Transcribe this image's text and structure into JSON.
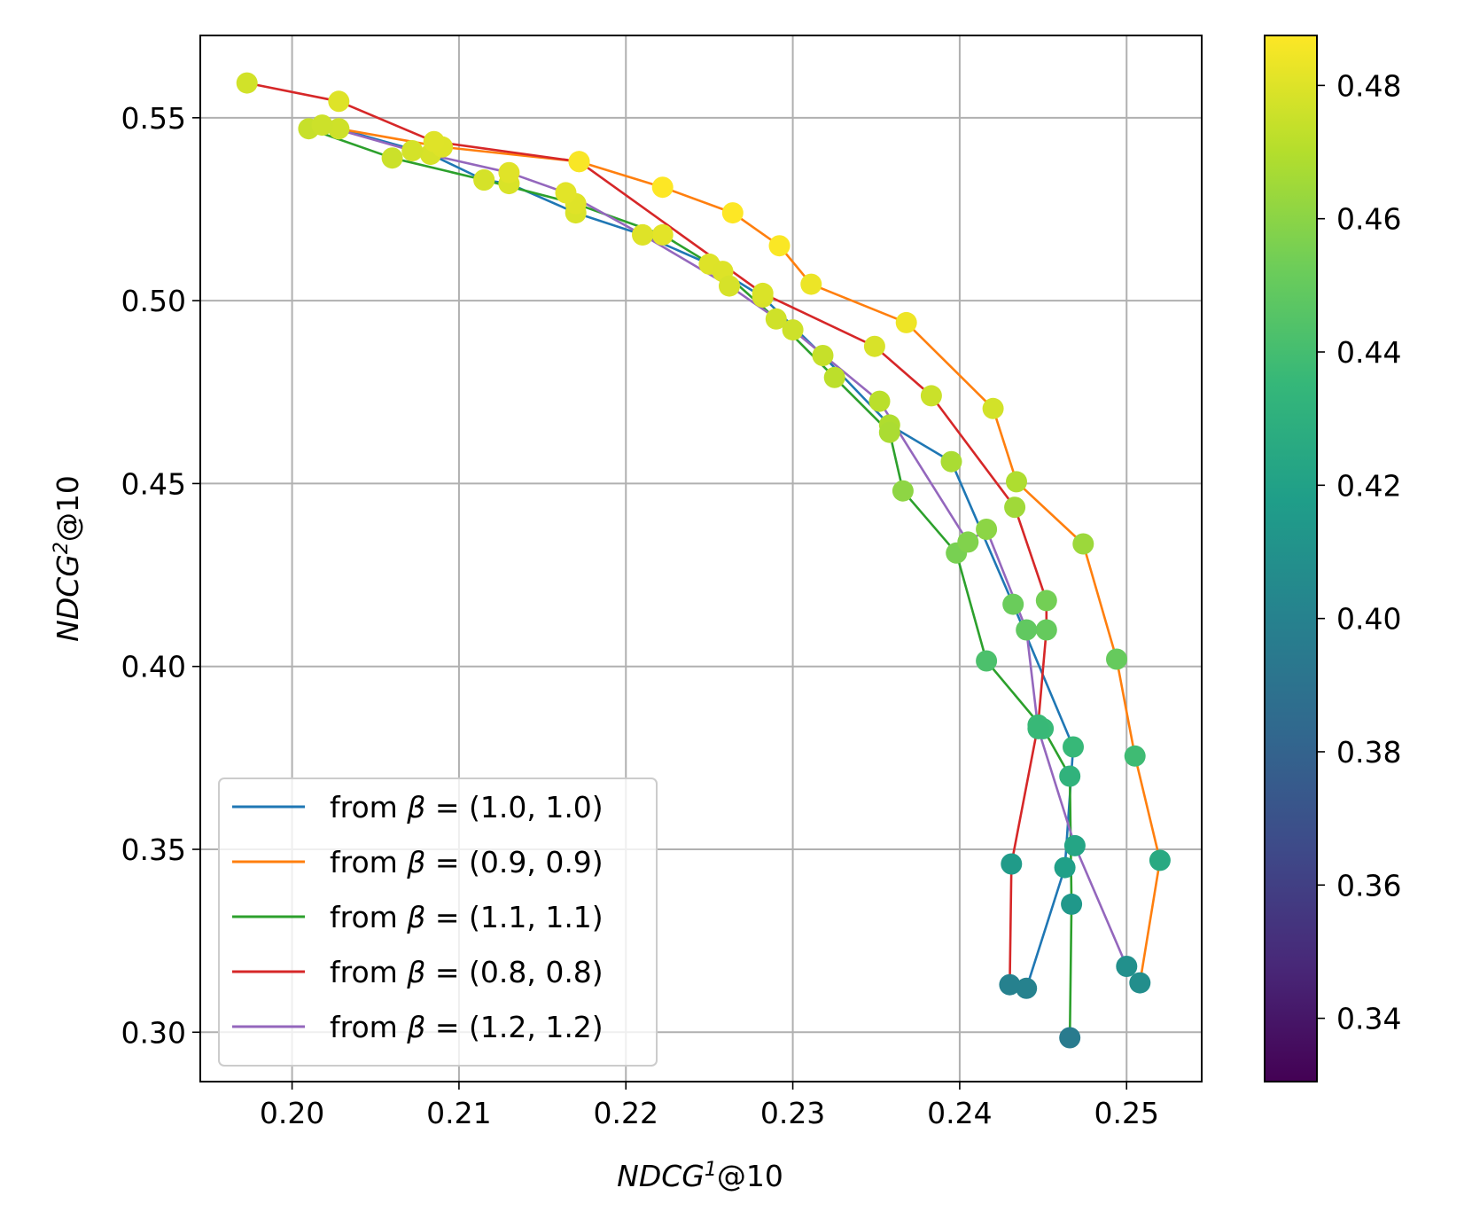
{
  "chart_data": {
    "type": "line",
    "xlabel_main": "NDCG",
    "xlabel_sup": "1",
    "xlabel_suffix": "@10",
    "ylabel_main": "NDCG",
    "ylabel_sup": "2",
    "ylabel_suffix": "@10",
    "xlim": [
      0.1945,
      0.2545
    ],
    "ylim": [
      0.2865,
      0.5725
    ],
    "xticks": [
      "0.20",
      "0.21",
      "0.22",
      "0.23",
      "0.24",
      "0.25"
    ],
    "xtick_values": [
      0.2,
      0.21,
      0.22,
      0.23,
      0.24,
      0.25
    ],
    "yticks": [
      "0.30",
      "0.35",
      "0.40",
      "0.45",
      "0.50",
      "0.55"
    ],
    "ytick_values": [
      0.3,
      0.35,
      0.4,
      0.45,
      0.5,
      0.55
    ],
    "grid": true,
    "colorbar": {
      "colormap": "viridis",
      "range": [
        0.3305,
        0.4875
      ],
      "ticks": [
        "0.34",
        "0.36",
        "0.38",
        "0.40",
        "0.42",
        "0.44",
        "0.46",
        "0.48"
      ],
      "tick_values": [
        0.34,
        0.36,
        0.38,
        0.4,
        0.42,
        0.44,
        0.46,
        0.48
      ]
    },
    "legend_position": "lower-left",
    "series": [
      {
        "name": "from β = (1.0, 1.0)",
        "legend_prefix": "from ",
        "legend_beta": "β",
        "legend_value": " = (1.0, 1.0)",
        "color": "#1f77b4",
        "x": [
          0.2028,
          0.2083,
          0.2115,
          0.213,
          0.217,
          0.221,
          0.225,
          0.2282,
          0.2318,
          0.2358,
          0.2395,
          0.2432,
          0.2468,
          0.2463,
          0.244
        ],
        "y": [
          0.547,
          0.54,
          0.533,
          0.532,
          0.524,
          0.518,
          0.51,
          0.501,
          0.485,
          0.466,
          0.456,
          0.417,
          0.378,
          0.345,
          0.312
        ]
      },
      {
        "name": "from β = (0.9, 0.9)",
        "legend_prefix": "from ",
        "legend_beta": "β",
        "legend_value": " = (0.9, 0.9)",
        "color": "#ff7f0e",
        "x": [
          0.2028,
          0.209,
          0.2172,
          0.2222,
          0.2264,
          0.2292,
          0.2311,
          0.2368,
          0.242,
          0.2434,
          0.2474,
          0.2494,
          0.2505,
          0.252,
          0.2508
        ],
        "y": [
          0.547,
          0.542,
          0.538,
          0.531,
          0.524,
          0.515,
          0.5045,
          0.494,
          0.4705,
          0.4505,
          0.4335,
          0.402,
          0.3755,
          0.347,
          0.3135
        ]
      },
      {
        "name": "from β = (1.1, 1.1)",
        "legend_prefix": "from ",
        "legend_beta": "β",
        "legend_value": " = (1.1, 1.1)",
        "color": "#2ca02c",
        "x": [
          0.201,
          0.206,
          0.2115,
          0.217,
          0.2222,
          0.2258,
          0.229,
          0.2325,
          0.2358,
          0.2366,
          0.2398,
          0.2416,
          0.245,
          0.2466,
          0.2467,
          0.2466
        ],
        "y": [
          0.547,
          0.539,
          0.533,
          0.5265,
          0.518,
          0.508,
          0.495,
          0.479,
          0.464,
          0.448,
          0.431,
          0.4015,
          0.383,
          0.37,
          0.335,
          0.2985
        ]
      },
      {
        "name": "from β = (0.8, 0.8)",
        "legend_prefix": "from ",
        "legend_beta": "β",
        "legend_value": " = (0.8, 0.8)",
        "color": "#d62728",
        "x": [
          0.1973,
          0.2028,
          0.2085,
          0.2172,
          0.2282,
          0.2349,
          0.2383,
          0.2433,
          0.2452,
          0.2452,
          0.2447,
          0.2431,
          0.243
        ],
        "y": [
          0.5595,
          0.5545,
          0.5435,
          0.538,
          0.502,
          0.4875,
          0.474,
          0.4435,
          0.418,
          0.41,
          0.384,
          0.346,
          0.313
        ]
      },
      {
        "name": "from β = (1.2, 1.2)",
        "legend_prefix": "from ",
        "legend_beta": "β",
        "legend_value": " = (1.2, 1.2)",
        "color": "#9467bd",
        "x": [
          0.2018,
          0.2072,
          0.213,
          0.2164,
          0.221,
          0.2262,
          0.23,
          0.2352,
          0.2405,
          0.2416,
          0.244,
          0.2447,
          0.2469,
          0.25
        ],
        "y": [
          0.548,
          0.541,
          0.535,
          0.5295,
          0.518,
          0.504,
          0.492,
          0.4725,
          0.434,
          0.4375,
          0.41,
          0.383,
          0.351,
          0.318
        ]
      }
    ]
  }
}
